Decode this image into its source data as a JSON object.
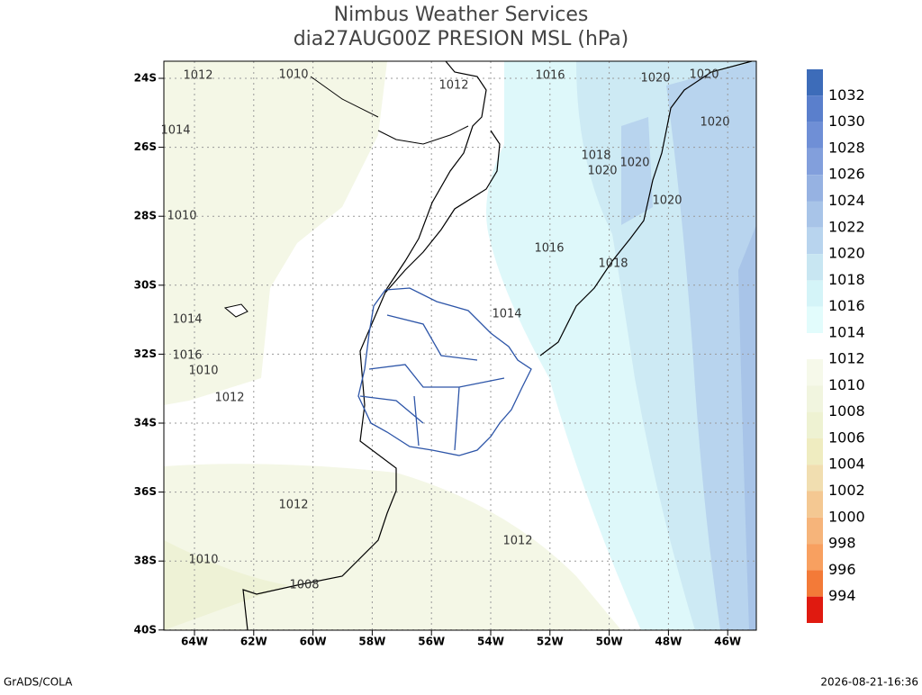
{
  "header": {
    "title": "Nimbus Weather Services",
    "subtitle": "dia27AUG00Z PRESION MSL (hPa)"
  },
  "map": {
    "lat_labels": [
      "24S",
      "26S",
      "28S",
      "30S",
      "32S",
      "34S",
      "36S",
      "38S",
      "40S"
    ],
    "lon_labels": [
      "64W",
      "62W",
      "60W",
      "58W",
      "56W",
      "54W",
      "52W",
      "50W",
      "48W",
      "46W"
    ],
    "contour_labels": [
      "1012",
      "1010",
      "1012",
      "1016",
      "1020",
      "1020",
      "1020",
      "1018",
      "1020",
      "1020",
      "1020",
      "1016",
      "1018",
      "1014",
      "1014",
      "1016",
      "1010",
      "1012",
      "1012",
      "1012",
      "1010",
      "1008",
      "1010",
      "1014"
    ]
  },
  "colorbar": {
    "upper": [
      {
        "label": "1032",
        "color": "#3d6cb9"
      },
      {
        "label": "1030",
        "color": "#5a7fcc"
      },
      {
        "label": "1028",
        "color": "#6f8fd6"
      },
      {
        "label": "1026",
        "color": "#829fdc"
      },
      {
        "label": "1024",
        "color": "#96b2e2"
      },
      {
        "label": "1022",
        "color": "#a8c4e8"
      },
      {
        "label": "1020",
        "color": "#b8d4ee"
      },
      {
        "label": "1018",
        "color": "#c8e6f2"
      },
      {
        "label": "1016",
        "color": "#d4f4f8"
      },
      {
        "label": "1014",
        "color": "#e2fcfc"
      }
    ],
    "lower": [
      {
        "label": "1012",
        "color": "#f6f9ea"
      },
      {
        "label": "1010",
        "color": "#f1f5df"
      },
      {
        "label": "1008",
        "color": "#eef2d2"
      },
      {
        "label": "1006",
        "color": "#efecc0"
      },
      {
        "label": "1004",
        "color": "#f1deb0"
      },
      {
        "label": "1002",
        "color": "#f4c892"
      },
      {
        "label": "1000",
        "color": "#f6b47a"
      },
      {
        "label": "998",
        "color": "#f8a060"
      },
      {
        "label": "996",
        "color": "#f37a38"
      },
      {
        "label": "994",
        "color": "#e01a10"
      }
    ]
  },
  "footer": {
    "left": "GrADS/COLA",
    "right": "2026-08-21-16:36"
  }
}
